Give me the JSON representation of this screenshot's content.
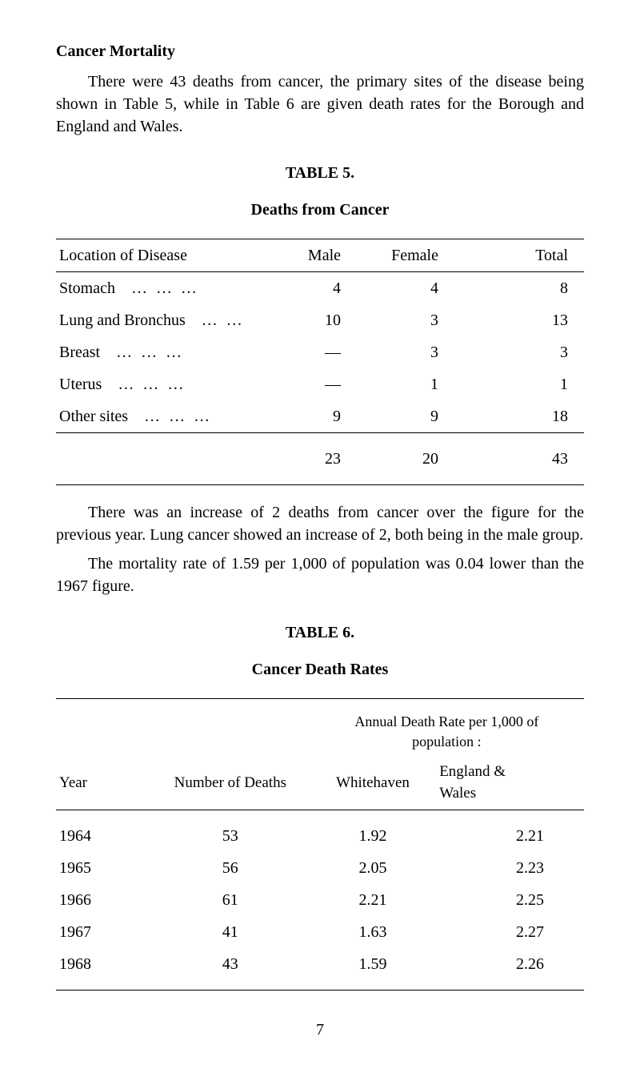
{
  "section_heading": "Cancer Mortality",
  "intro_paragraph": "There were 43 deaths from cancer, the primary sites of the disease being shown in Table 5, while in Table 6 are given death rates for the Borough and England and Wales.",
  "table5": {
    "label": "TABLE 5.",
    "title": "Deaths from Cancer",
    "headers": {
      "location": "Location of Disease",
      "male": "Male",
      "female": "Female",
      "total": "Total"
    },
    "rows": [
      {
        "location": "Stomach",
        "dots": "…    …    …",
        "male": "4",
        "female": "4",
        "total": "8"
      },
      {
        "location": "Lung and Bronchus",
        "dots": "…    …",
        "male": "10",
        "female": "3",
        "total": "13"
      },
      {
        "location": "Breast",
        "dots": "…    …    …",
        "male": "—",
        "female": "3",
        "total": "3"
      },
      {
        "location": "Uterus",
        "dots": "…    …    …",
        "male": "—",
        "female": "1",
        "total": "1"
      },
      {
        "location": "Other sites",
        "dots": "…    …    …",
        "male": "9",
        "female": "9",
        "total": "18"
      }
    ],
    "totals": {
      "male": "23",
      "female": "20",
      "total": "43"
    }
  },
  "mid_para1": "There was an increase of 2 deaths from cancer over the figure for the previous year. Lung cancer showed an increase of 2, both being in the male group.",
  "mid_para2": "The mortality rate of 1.59 per 1,000 of population was 0.04 lower than the 1967 figure.",
  "table6": {
    "label": "TABLE 6.",
    "title": "Cancer Death Rates",
    "annual_header_line1": "Annual Death Rate per 1,000 of",
    "annual_header_line2": "population :",
    "headers": {
      "year": "Year",
      "deaths": "Number of Deaths",
      "whitehaven": "Whitehaven",
      "england": "England & Wales"
    },
    "rows": [
      {
        "year": "1964",
        "deaths": "53",
        "whitehaven": "1.92",
        "england": "2.21"
      },
      {
        "year": "1965",
        "deaths": "56",
        "whitehaven": "2.05",
        "england": "2.23"
      },
      {
        "year": "1966",
        "deaths": "61",
        "whitehaven": "2.21",
        "england": "2.25"
      },
      {
        "year": "1967",
        "deaths": "41",
        "whitehaven": "1.63",
        "england": "2.27"
      },
      {
        "year": "1968",
        "deaths": "43",
        "whitehaven": "1.59",
        "england": "2.26"
      }
    ]
  },
  "page_number": "7"
}
